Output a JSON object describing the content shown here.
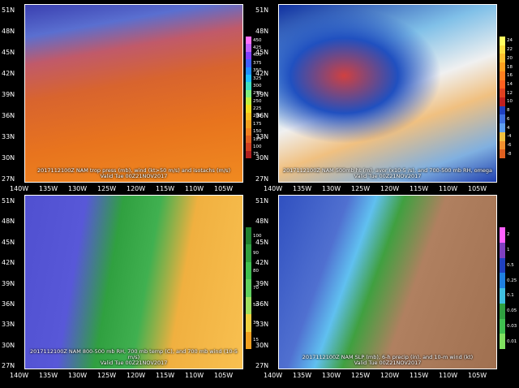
{
  "lat_labels": [
    "51N",
    "48N",
    "45N",
    "42N",
    "39N",
    "36N",
    "33N",
    "30N",
    "27N"
  ],
  "lon_labels": [
    "140W",
    "135W",
    "130W",
    "125W",
    "120W",
    "115W",
    "110W",
    "105W"
  ],
  "panels": [
    {
      "caption": [
        "2017112100Z NAM trop press (mb), wind (kt>50 m/s) and isotachs (m/s)",
        "Valid Tue 00Z21NOV2017"
      ],
      "colorbar": [
        450,
        425,
        400,
        375,
        350,
        325,
        300,
        275,
        250,
        225,
        200,
        175,
        150,
        125,
        100,
        75
      ]
    },
    {
      "caption": [
        "2017112100Z NAM 500mb ht (m), avor (x10-5 /s), and 700-500 mb RH, omega",
        "Valid Tue 00Z21NOV2017"
      ],
      "colorbar": [
        24,
        22,
        20,
        18,
        16,
        14,
        12,
        10,
        8,
        6,
        4,
        -4,
        -6,
        -8
      ]
    },
    {
      "caption": [
        "2017112100Z NAM 800-500 mb RH, 700 mb temp (C), and 700 mb wind (10-5 m/s)",
        "Valid Tue 00Z21NOV2017"
      ],
      "colorbar": [
        100,
        90,
        80,
        70,
        50,
        30,
        15
      ]
    },
    {
      "caption": [
        "2017112100Z NAM SLP (mb), 6-h precip (in), and 10-m wind (kt)",
        "Valid Tue 00Z21NOV2017"
      ],
      "colorbar": [
        2,
        1,
        0.5,
        0.25,
        0.1,
        0.05,
        0.03,
        0.01
      ]
    }
  ]
}
